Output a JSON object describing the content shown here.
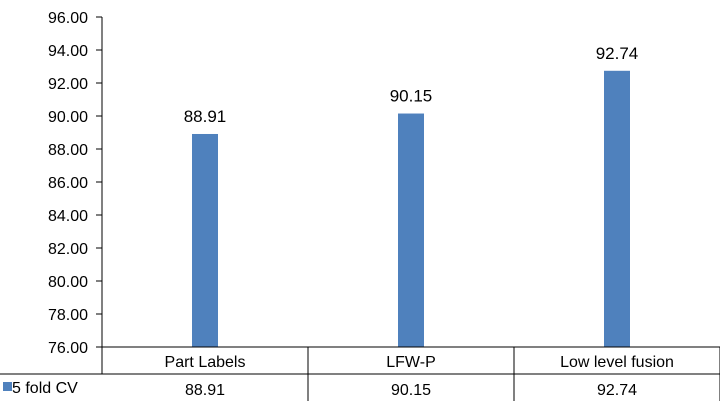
{
  "chart_data": {
    "type": "bar",
    "categories": [
      "Part Labels",
      "LFW-P",
      "Low level fusion"
    ],
    "series": [
      {
        "name": "5 fold CV",
        "values": [
          88.91,
          90.15,
          92.74
        ],
        "color": "#4F81BD"
      }
    ],
    "data_labels": [
      "88.91",
      "90.15",
      "92.74"
    ],
    "ylim": [
      76,
      96
    ],
    "yticks": [
      "76.00",
      "78.00",
      "80.00",
      "82.00",
      "84.00",
      "86.00",
      "88.00",
      "90.00",
      "92.00",
      "94.00",
      "96.00"
    ],
    "grid": false,
    "legend": "data-table",
    "data_table": {
      "header": [
        "Part Labels",
        "LFW-P",
        "Low level fusion"
      ],
      "rows": [
        {
          "label": "5 fold CV",
          "cells": [
            "88.91",
            "90.15",
            "92.74"
          ]
        }
      ]
    }
  }
}
